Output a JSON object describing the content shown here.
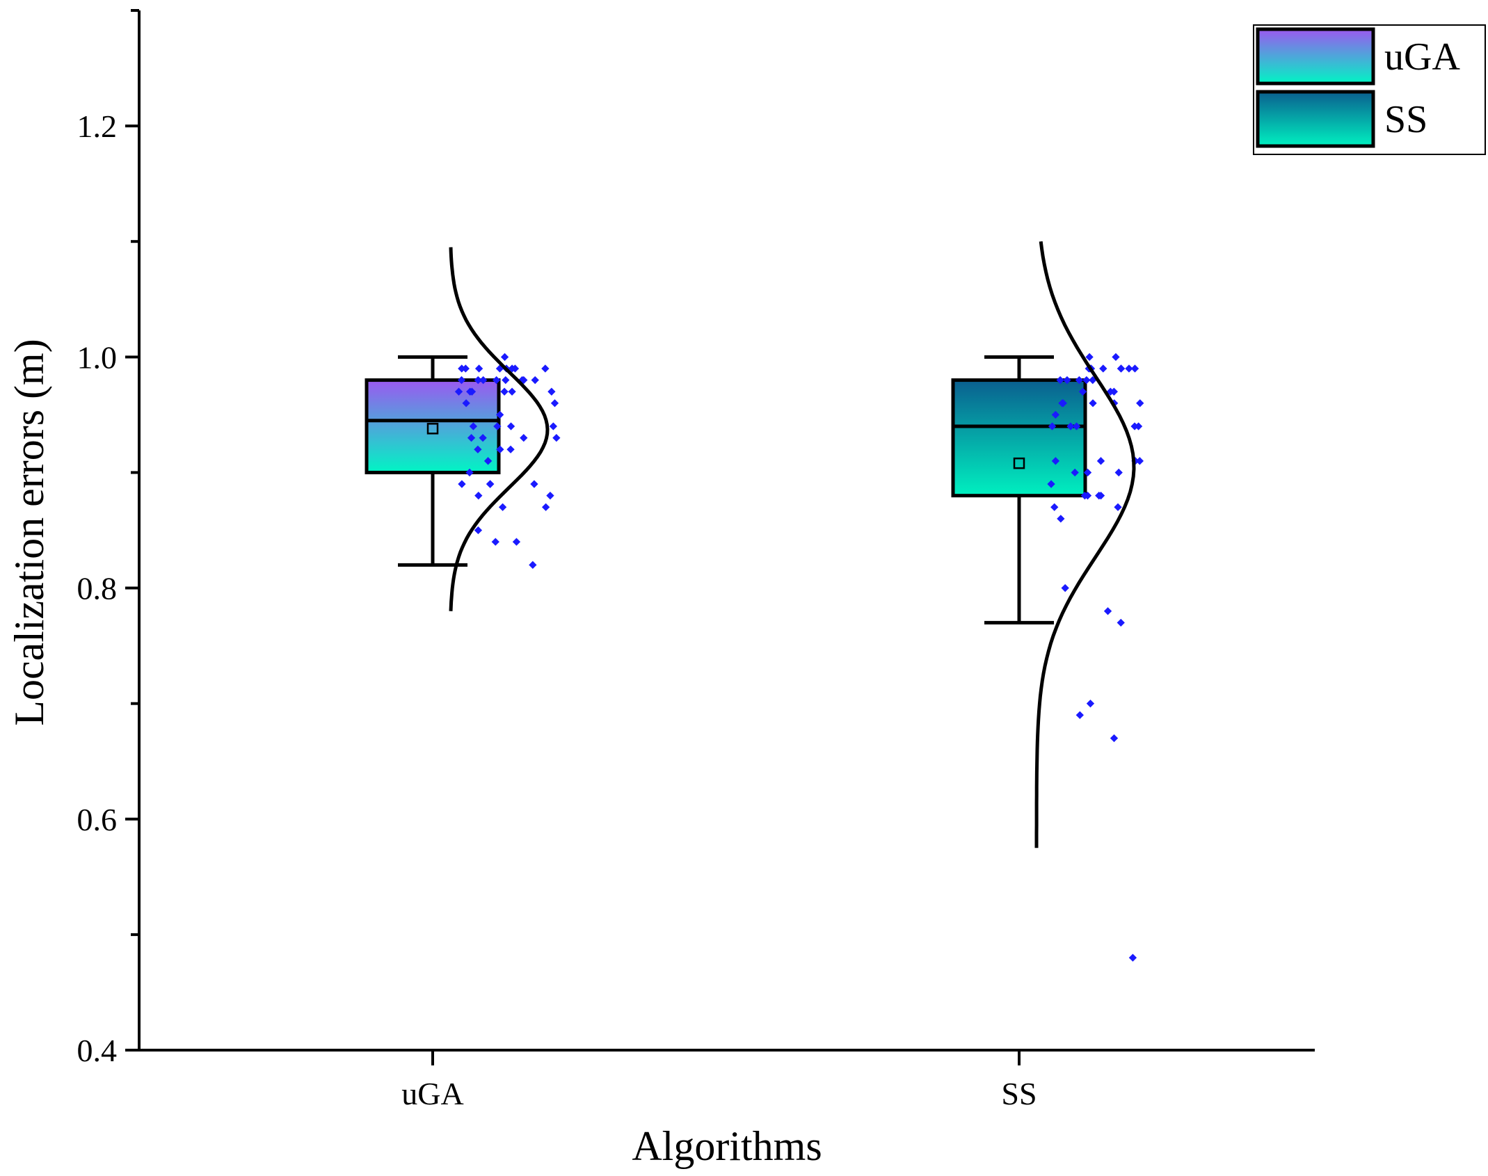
{
  "chart_data": {
    "type": "box",
    "xlabel": "Algorithms",
    "ylabel": "Localization errors (m)",
    "ylim": [
      0.4,
      1.3
    ],
    "y_ticks": [
      0.4,
      0.6,
      0.8,
      1.0,
      1.2
    ],
    "y_tick_labels": [
      "0.4",
      "0.6",
      "0.8",
      "1.0",
      "1.2"
    ],
    "categories": [
      "uGA",
      "SS"
    ],
    "legend": {
      "placement": "top-right",
      "entries": [
        "uGA",
        "SS"
      ]
    },
    "colors": {
      "uGA_top": "#9b59f0",
      "uGA_bottom": "#00f5c4",
      "SS_top": "#0a5f8f",
      "SS_bottom": "#00f0c0",
      "points": "#1a1aff",
      "curve": "#000000"
    },
    "series": [
      {
        "name": "uGA",
        "whisker_low": 0.82,
        "q1": 0.9,
        "median": 0.945,
        "q3": 0.98,
        "whisker_high": 1.0,
        "mean": 0.938,
        "density_range": [
          0.78,
          1.095
        ],
        "density_mean": 0.937,
        "density_sd": 0.05,
        "points": [
          1.0,
          0.99,
          0.99,
          0.99,
          0.99,
          0.99,
          0.99,
          0.99,
          0.99,
          0.98,
          0.98,
          0.98,
          0.98,
          0.98,
          0.98,
          0.98,
          0.98,
          0.97,
          0.97,
          0.97,
          0.97,
          0.97,
          0.97,
          0.96,
          0.96,
          0.95,
          0.94,
          0.94,
          0.94,
          0.94,
          0.93,
          0.93,
          0.93,
          0.93,
          0.92,
          0.92,
          0.92,
          0.91,
          0.9,
          0.89,
          0.89,
          0.89,
          0.89,
          0.88,
          0.88,
          0.87,
          0.87,
          0.85,
          0.84,
          0.84,
          0.82
        ]
      },
      {
        "name": "SS",
        "whisker_low": 0.77,
        "q1": 0.88,
        "median": 0.94,
        "q3": 0.98,
        "whisker_high": 1.0,
        "mean": 0.908,
        "density_range": [
          0.575,
          1.1
        ],
        "density_mean": 0.905,
        "density_sd": 0.078,
        "points": [
          1.0,
          1.0,
          0.99,
          0.99,
          0.99,
          0.99,
          0.99,
          0.99,
          0.99,
          0.99,
          0.98,
          0.98,
          0.98,
          0.98,
          0.98,
          0.97,
          0.97,
          0.97,
          0.96,
          0.96,
          0.96,
          0.96,
          0.96,
          0.95,
          0.94,
          0.94,
          0.94,
          0.94,
          0.94,
          0.91,
          0.91,
          0.91,
          0.91,
          0.9,
          0.9,
          0.9,
          0.89,
          0.88,
          0.88,
          0.88,
          0.88,
          0.87,
          0.87,
          0.86,
          0.8,
          0.78,
          0.77,
          0.7,
          0.69,
          0.67,
          0.48
        ]
      }
    ]
  }
}
